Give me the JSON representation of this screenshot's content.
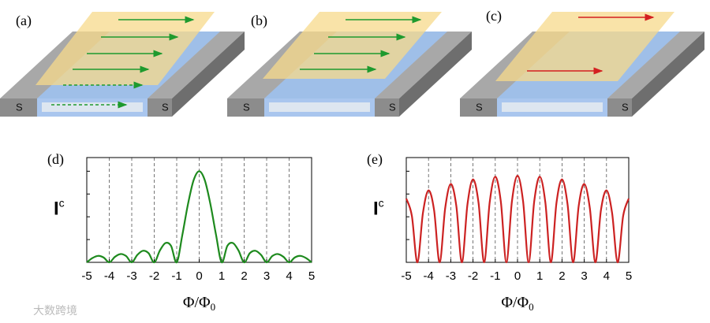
{
  "panels": [
    "(a)",
    "(b)",
    "(c)"
  ],
  "electrode_labels": [
    "S",
    "S"
  ],
  "watermark": "大数跨境",
  "chart_data": [
    {
      "type": "line",
      "label": "(d)",
      "xlabel": [
        "Φ/Φ",
        "0"
      ],
      "ylabel": [
        "I",
        "c"
      ],
      "x": [
        -5,
        -4.75,
        -4.5,
        -4.25,
        -4,
        -3.75,
        -3.5,
        -3.25,
        -3,
        -2.75,
        -2.5,
        -2.25,
        -2,
        -1.75,
        -1.5,
        -1.25,
        -1,
        -0.75,
        -0.5,
        -0.25,
        0,
        0.25,
        0.5,
        0.75,
        1,
        1.25,
        1.5,
        1.75,
        2,
        2.25,
        2.5,
        2.75,
        3,
        3.25,
        3.5,
        3.75,
        4,
        4.25,
        4.5,
        4.75,
        5
      ],
      "series": [
        {
          "color": "#1e8a1e",
          "values": [
            0,
            0.047,
            0.071,
            0.053,
            0,
            0.06,
            0.091,
            0.069,
            0,
            0.082,
            0.127,
            0.1,
            0,
            0.129,
            0.212,
            0.18,
            0,
            0.3,
            0.637,
            0.9,
            1,
            0.9,
            0.637,
            0.3,
            0,
            0.18,
            0.212,
            0.129,
            0,
            0.1,
            0.127,
            0.082,
            0,
            0.069,
            0.091,
            0.06,
            0,
            0.053,
            0.071,
            0.047,
            0
          ]
        }
      ],
      "xlim": [
        -5,
        5
      ],
      "ylim": [
        0,
        1.15
      ],
      "xticks": [
        -5,
        -4,
        -3,
        -2,
        -1,
        0,
        1,
        2,
        3,
        4,
        5
      ],
      "grid": true
    },
    {
      "type": "line",
      "label": "(e)",
      "xlabel": [
        "Φ/Φ",
        "0"
      ],
      "ylabel": [
        "I",
        "c"
      ],
      "x": [
        -5,
        -4.75,
        -4.5,
        -4.25,
        -4,
        -3.75,
        -3.5,
        -3.25,
        -3,
        -2.75,
        -2.5,
        -2.25,
        -2,
        -1.75,
        -1.5,
        -1.25,
        -1,
        -0.75,
        -0.5,
        -0.25,
        0,
        0.25,
        0.5,
        0.75,
        1,
        1.25,
        1.5,
        1.75,
        2,
        2.25,
        2.5,
        2.75,
        3,
        3.25,
        3.5,
        3.75,
        4,
        4.25,
        4.5,
        4.75,
        5
      ],
      "series": [
        {
          "color": "#cc2222",
          "values": [
            0.7,
            0.512,
            0,
            0.544,
            0.79,
            0.572,
            0,
            0.597,
            0.86,
            0.618,
            0,
            0.636,
            0.91,
            0.65,
            0,
            0.66,
            0.94,
            0.667,
            0,
            0.671,
            0.95,
            0.671,
            0,
            0.667,
            0.94,
            0.66,
            0,
            0.65,
            0.91,
            0.636,
            0,
            0.618,
            0.86,
            0.597,
            0,
            0.572,
            0.79,
            0.544,
            0,
            0.512,
            0.7
          ]
        }
      ],
      "xlim": [
        -5,
        5
      ],
      "ylim": [
        0,
        1.15
      ],
      "xticks": [
        -5,
        -4,
        -3,
        -2,
        -1,
        0,
        1,
        2,
        3,
        4,
        5
      ],
      "grid": true
    }
  ]
}
